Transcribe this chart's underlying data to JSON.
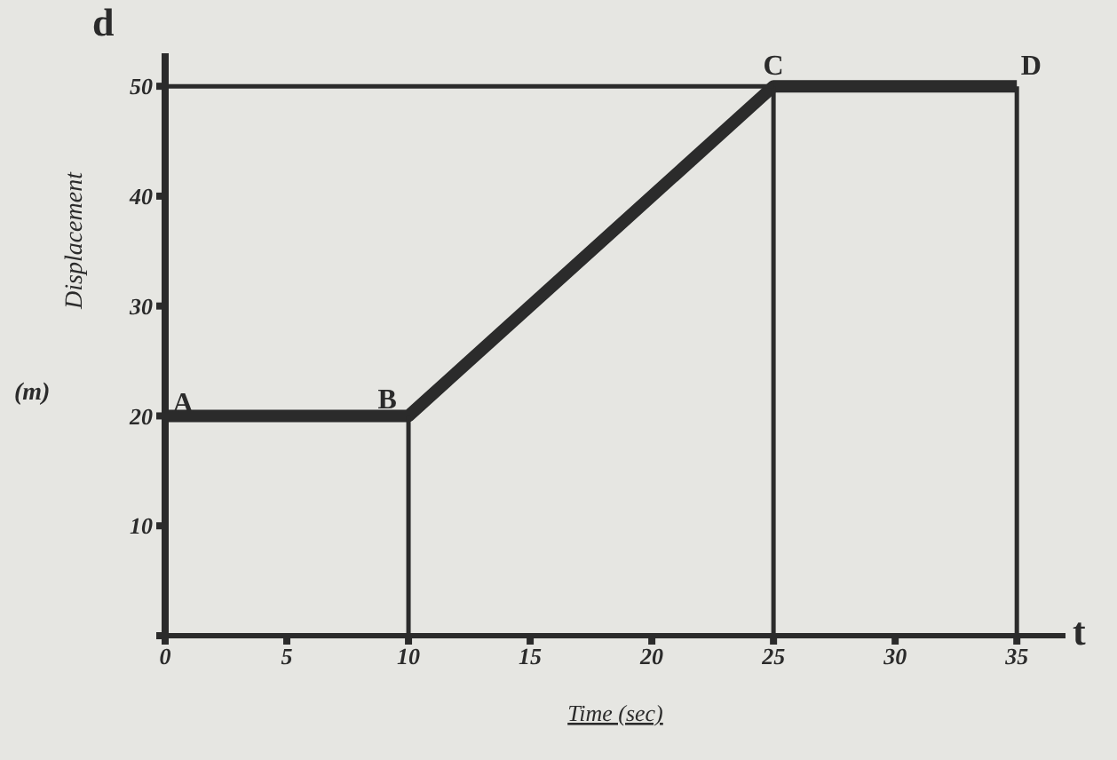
{
  "chart_data": {
    "type": "line",
    "xlabel": "Time (sec)",
    "ylabel": "Displacement",
    "xlim": [
      0,
      37
    ],
    "ylim": [
      0,
      53
    ],
    "xticks": [
      0,
      5,
      10,
      15,
      20,
      25,
      30,
      35
    ],
    "yticks": [
      {
        "value": 0,
        "label": null
      },
      10,
      20,
      30,
      40,
      50
    ],
    "marker": "none",
    "line_style": "solid",
    "series": [
      {
        "color": "#2b2b2b",
        "x": [
          0,
          10,
          25,
          35
        ],
        "values": [
          20,
          20,
          50,
          50
        ]
      },
      {
        "color": "#2b2b2b",
        "x": [
          10,
          10
        ],
        "values": [
          0,
          20
        ]
      },
      {
        "color": "#2b2b2b",
        "x": [
          25,
          25
        ],
        "values": [
          0,
          50
        ]
      },
      {
        "color": "#2b2b2b",
        "x": [
          35,
          35
        ],
        "values": [
          0,
          50
        ]
      },
      {
        "color": "#2b2b2b",
        "x": [
          0,
          25
        ],
        "values": [
          50,
          50
        ]
      }
    ],
    "annotations": [
      {
        "text": "A",
        "x": 0,
        "y": 20
      },
      {
        "text": "B",
        "x": 10,
        "y": 20
      },
      {
        "text": "C",
        "x": 25,
        "y": 50
      },
      {
        "text": "D",
        "x": 35,
        "y": 50
      },
      "d",
      "t",
      "(m)"
    ]
  }
}
